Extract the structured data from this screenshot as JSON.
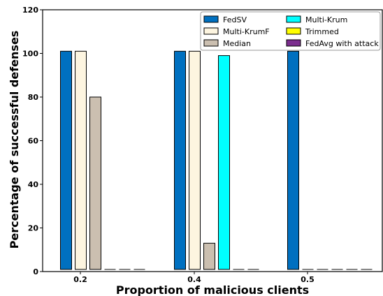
{
  "chart_data": {
    "type": "bar",
    "xlabel": "Proportion of malicious clients",
    "ylabel": "Percentage of successful defenses",
    "categories": [
      "0.2",
      "0.4",
      "0.5"
    ],
    "ylim": [
      0,
      120
    ],
    "yticks": [
      0,
      20,
      40,
      60,
      80,
      100,
      120
    ],
    "grid": false,
    "legend_position": "top-right",
    "series": [
      {
        "name": "FedSV",
        "color": "#0070c0",
        "values": [
          100,
          100,
          100
        ]
      },
      {
        "name": "Multi-KrumF",
        "color": "#fdf5e0",
        "values": [
          100,
          100,
          0
        ]
      },
      {
        "name": "Median",
        "color": "#cbbfb0",
        "values": [
          79,
          12,
          0
        ]
      },
      {
        "name": "Multi-Krum",
        "color": "#00ffff",
        "values": [
          0,
          98,
          0
        ]
      },
      {
        "name": "Trimmed",
        "color": "#ffff00",
        "values": [
          0,
          0,
          0
        ]
      },
      {
        "name": "FedAvg with attack",
        "color": "#7b2d8e",
        "values": [
          0,
          0,
          0
        ]
      }
    ]
  }
}
